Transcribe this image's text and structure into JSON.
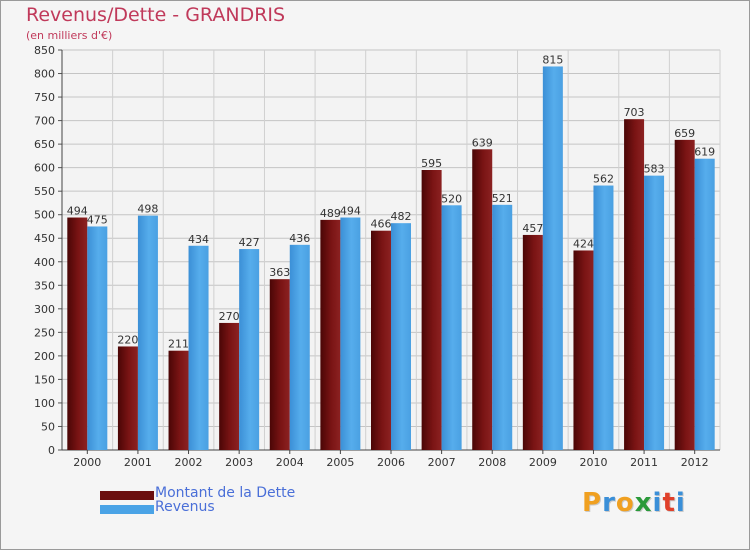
{
  "header": {
    "title": "Revenus/Dette - GRANDRIS",
    "subtitle": "(en milliers d'€)"
  },
  "chart_data": {
    "type": "bar",
    "categories": [
      "2000",
      "2001",
      "2002",
      "2003",
      "2004",
      "2005",
      "2006",
      "2007",
      "2008",
      "2009",
      "2010",
      "2011",
      "2012"
    ],
    "series": [
      {
        "name": "Montant de la Dette",
        "color": "#7a1212",
        "values": [
          494,
          220,
          211,
          270,
          363,
          489,
          466,
          595,
          639,
          457,
          424,
          703,
          659
        ]
      },
      {
        "name": "Revenus",
        "color": "#4aa3e6",
        "values": [
          475,
          498,
          434,
          427,
          436,
          494,
          482,
          520,
          521,
          815,
          562,
          583,
          619
        ]
      }
    ],
    "ylim": [
      0,
      850
    ],
    "yticks": [
      0,
      50,
      100,
      150,
      200,
      250,
      300,
      350,
      400,
      450,
      500,
      550,
      600,
      650,
      700,
      750,
      800,
      850
    ],
    "grid": true,
    "legend_position": "bottom-left"
  },
  "legend": {
    "items": [
      {
        "label": "Montant de la Dette",
        "color": "#6b0f0f"
      },
      {
        "label": "Revenus",
        "color": "#4aa3e6"
      }
    ]
  },
  "logo": {
    "text": "Proxiti",
    "letters": [
      {
        "ch": "P",
        "color": "#f0a020"
      },
      {
        "ch": "r",
        "color": "#3a8fd8"
      },
      {
        "ch": "o",
        "color": "#f0a020"
      },
      {
        "ch": "x",
        "color": "#2a9a3a"
      },
      {
        "ch": "i",
        "color": "#3a8fd8"
      },
      {
        "ch": "t",
        "color": "#e0402a"
      },
      {
        "ch": "i",
        "color": "#3a8fd8"
      }
    ]
  }
}
